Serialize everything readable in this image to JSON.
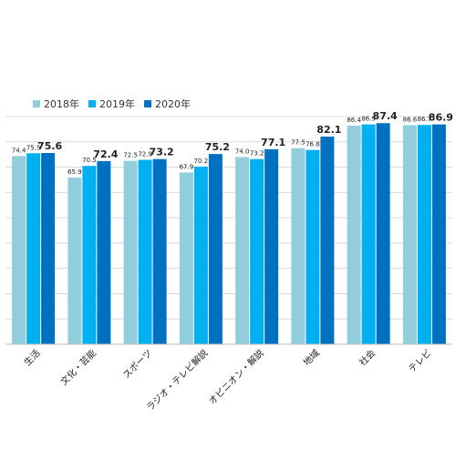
{
  "chart_data": {
    "type": "bar",
    "categories": [
      "生活",
      "文化・芸能",
      "スポーツ",
      "ラジオ・テレビ解説",
      "オピニオン・解説",
      "地域",
      "社会",
      "テレビ"
    ],
    "series": [
      {
        "name": "2018年",
        "values": [
          74.4,
          65.9,
          72.5,
          67.9,
          74.0,
          77.5,
          86.4,
          86.6
        ],
        "color": "#92cddc"
      },
      {
        "name": "2019年",
        "values": [
          75.5,
          70.5,
          72.9,
          70.2,
          73.2,
          76.8,
          86.9,
          86.7
        ],
        "color": "#00b0f0"
      },
      {
        "name": "2020年",
        "values": [
          75.6,
          72.4,
          73.2,
          75.2,
          77.1,
          82.1,
          87.4,
          86.9
        ],
        "color": "#0070c0"
      }
    ],
    "value_labels": [
      [
        "74.4",
        "65.9",
        "72.5",
        "67.9",
        "74.0",
        "77.5",
        "86.4",
        "86.6"
      ],
      [
        "75.5",
        "70.5",
        "72.9",
        "70.2",
        "73.2",
        "76.8",
        "86.9",
        "86.7"
      ],
      [
        "75.6",
        "72.4",
        "73.2",
        "75.2",
        "77.1",
        "82.1",
        "87.4",
        "86.9"
      ]
    ],
    "title": "",
    "xlabel": "",
    "ylabel": "",
    "ylim": [
      0,
      90
    ],
    "grid": true,
    "legend_position": "top-left",
    "highlight_series": 2
  }
}
